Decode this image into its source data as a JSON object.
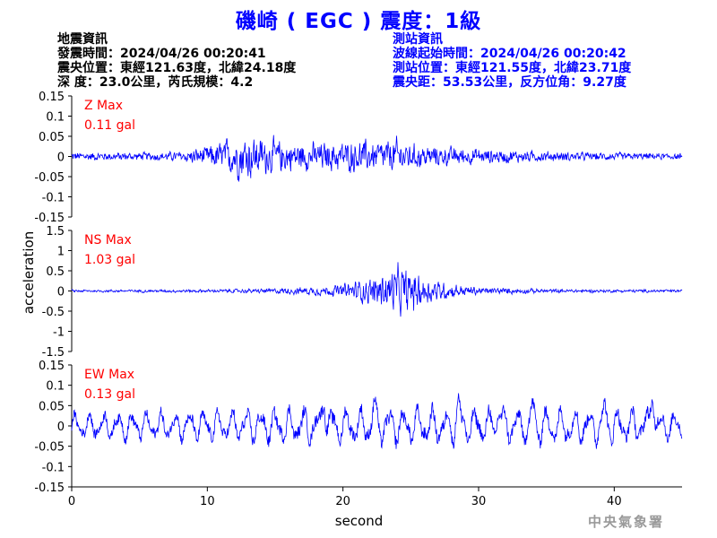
{
  "title": "磯崎 ( EGC ) 震度：1級",
  "event_info": {
    "heading": "地震資訊",
    "origin_time": "發震時間：2024/04/26 00:20:41",
    "epicenter": "震央位置：東經121.63度，北緯24.18度",
    "depth_magnitude": "深  度：23.0公里，芮氏規模：4.2"
  },
  "station_info": {
    "heading": "測站資訊",
    "wave_start": "波線起始時間：2024/04/26 00:20:42",
    "station_location": "測站位置：東經121.55度，北緯23.71度",
    "distance_azimuth": "震央距：53.53公里，反方位角：9.27度"
  },
  "footer": "中央氣象署",
  "colors": {
    "title": "#0000ff",
    "trace": "#0000ff",
    "max_label": "#ff0000",
    "station_text": "#0000ff"
  },
  "chart_data": {
    "type": "line",
    "xlabel": "second",
    "ylabel": "acceleration",
    "xlim": [
      0,
      45
    ],
    "xticks": [
      0,
      10,
      20,
      30,
      40
    ],
    "panels": [
      {
        "name": "Z",
        "label": "Z Max",
        "max_text": "0.11 gal",
        "max": 0.11,
        "ylim": [
          -0.15,
          0.15
        ],
        "yticks": [
          -0.15,
          -0.1,
          -0.05,
          0,
          0.05,
          0.1,
          0.15
        ],
        "ytick_labels": [
          "-0.15",
          "-0.1",
          "-0.05",
          "0",
          "0.05",
          "0.1",
          "0.15"
        ],
        "envelope": [
          [
            0,
            0.018
          ],
          [
            5,
            0.016
          ],
          [
            8,
            0.02
          ],
          [
            10,
            0.04
          ],
          [
            11,
            0.06
          ],
          [
            12,
            0.08
          ],
          [
            13,
            0.095
          ],
          [
            14,
            0.075
          ],
          [
            15,
            0.065
          ],
          [
            17,
            0.055
          ],
          [
            19,
            0.055
          ],
          [
            21,
            0.065
          ],
          [
            23,
            0.06
          ],
          [
            24,
            0.07
          ],
          [
            25,
            0.05
          ],
          [
            27,
            0.04
          ],
          [
            30,
            0.03
          ],
          [
            35,
            0.02
          ],
          [
            40,
            0.015
          ],
          [
            45,
            0.012
          ]
        ]
      },
      {
        "name": "NS",
        "label": "NS Max",
        "max_text": "1.03 gal",
        "max": 1.03,
        "ylim": [
          -1.5,
          1.5
        ],
        "yticks": [
          -1.5,
          -1,
          -0.5,
          0,
          0.5,
          1,
          1.5
        ],
        "ytick_labels": [
          "-1.5",
          "-1",
          "-0.5",
          "0",
          "0.5",
          "1",
          "1.5"
        ],
        "envelope": [
          [
            0,
            0.05
          ],
          [
            10,
            0.06
          ],
          [
            15,
            0.1
          ],
          [
            17,
            0.15
          ],
          [
            19,
            0.2
          ],
          [
            20,
            0.28
          ],
          [
            21,
            0.42
          ],
          [
            22,
            0.5
          ],
          [
            23,
            0.75
          ],
          [
            24,
            0.95
          ],
          [
            25,
            0.85
          ],
          [
            26,
            0.55
          ],
          [
            28,
            0.28
          ],
          [
            30,
            0.15
          ],
          [
            35,
            0.08
          ],
          [
            40,
            0.06
          ],
          [
            45,
            0.06
          ]
        ]
      },
      {
        "name": "EW",
        "label": "EW Max",
        "max_text": "0.13 gal",
        "max": 0.13,
        "ylim": [
          -0.15,
          0.15
        ],
        "yticks": [
          -0.15,
          -0.1,
          -0.05,
          0,
          0.05,
          0.1,
          0.15
        ],
        "ytick_labels": [
          "-0.15",
          "-0.1",
          "-0.05",
          "0",
          "0.05",
          "0.1",
          "0.15"
        ],
        "envelope": [
          [
            0,
            0.025
          ],
          [
            10,
            0.03
          ],
          [
            18,
            0.035
          ],
          [
            20,
            0.035
          ],
          [
            25,
            0.035
          ],
          [
            30,
            0.035
          ],
          [
            35,
            0.035
          ],
          [
            40,
            0.035
          ],
          [
            45,
            0.03
          ]
        ],
        "spikes": [
          [
            18.6,
            0.12
          ],
          [
            22.3,
            0.08
          ],
          [
            28.5,
            0.095
          ],
          [
            31.5,
            0.085
          ],
          [
            34,
            0.08
          ],
          [
            39.3,
            0.08
          ],
          [
            42.8,
            0.13
          ]
        ]
      }
    ]
  }
}
